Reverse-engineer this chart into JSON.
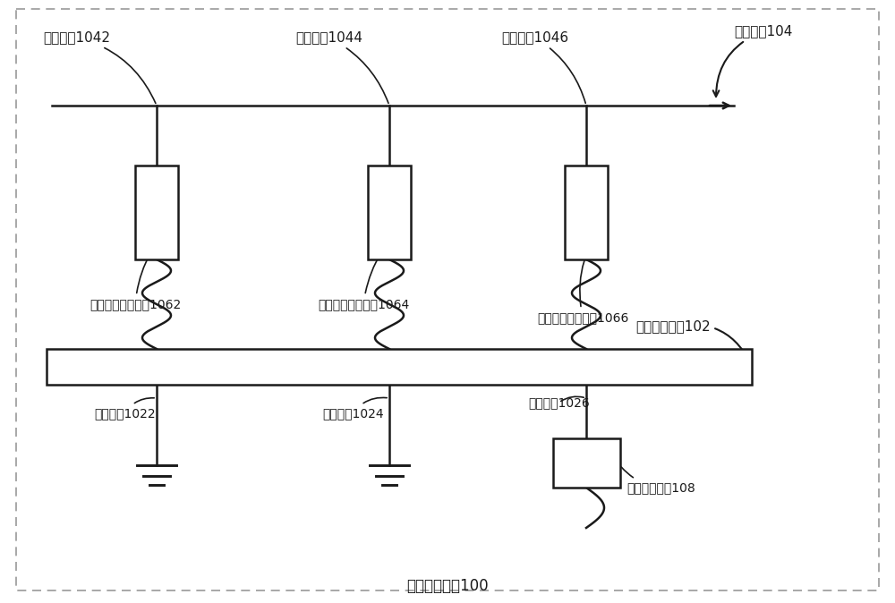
{
  "title": "天线切换组件100",
  "background_color": "#ffffff",
  "line_color": "#1a1a1a",
  "figsize": [
    10.0,
    6.74
  ],
  "dpi": 100,
  "labels": {
    "feed1": "第一馈点1042",
    "feed2": "第二馈点1044",
    "feed3": "第三馈点1046",
    "antenna_body": "天线本体104",
    "match1": "第一阻抗匹配单元1062",
    "match2": "第二阻抗匹配单元1064",
    "match3": "第三阻抗匹配单元1066",
    "switch": "三相切换开关102",
    "term1": "第一端子1022",
    "term2": "第二端子1024",
    "term3": "第三端子1026",
    "rf_module": "射频处理模块108",
    "assembly": "天线切换组件100"
  },
  "font_name": "SimHei",
  "font_size": 11,
  "font_size_sm": 10
}
